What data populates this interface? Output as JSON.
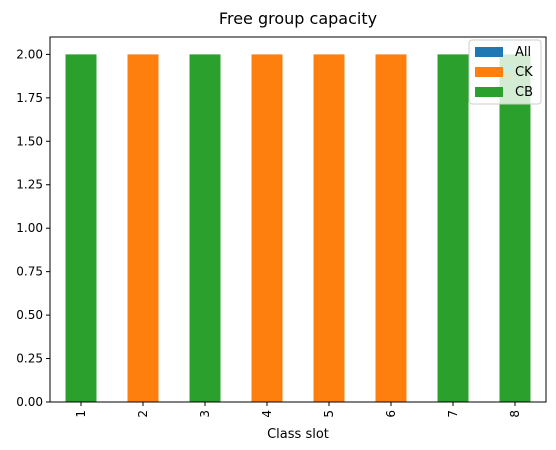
{
  "chart_data": {
    "type": "bar",
    "stacked": true,
    "title": "Free group capacity",
    "xlabel": "Class slot",
    "ylabel": "",
    "categories": [
      "1",
      "2",
      "3",
      "4",
      "5",
      "6",
      "7",
      "8"
    ],
    "ylim": [
      0,
      2.1
    ],
    "yticks": [
      "0.00",
      "0.25",
      "0.50",
      "0.75",
      "1.00",
      "1.25",
      "1.50",
      "1.75",
      "2.00"
    ],
    "series": [
      {
        "name": "All",
        "color": "#1f77b4",
        "values": [
          0,
          0,
          0,
          0,
          0,
          0,
          0,
          0
        ]
      },
      {
        "name": "CK",
        "color": "#ff7f0e",
        "values": [
          0,
          2,
          0,
          2,
          2,
          2,
          0,
          0
        ]
      },
      {
        "name": "CB",
        "color": "#2ca02c",
        "values": [
          2,
          0,
          2,
          0,
          0,
          0,
          2,
          2
        ]
      }
    ],
    "legend_position": "top-right",
    "grid": false
  }
}
